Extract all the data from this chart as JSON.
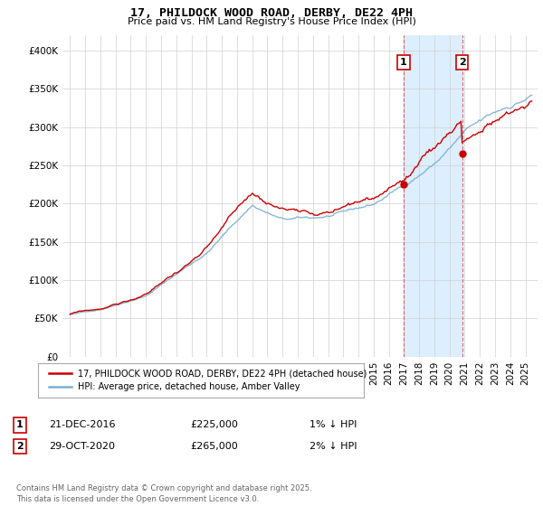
{
  "title": "17, PHILDOCK WOOD ROAD, DERBY, DE22 4PH",
  "subtitle": "Price paid vs. HM Land Registry's House Price Index (HPI)",
  "legend_line1": "17, PHILDOCK WOOD ROAD, DERBY, DE22 4PH (detached house)",
  "legend_line2": "HPI: Average price, detached house, Amber Valley",
  "annotation1_label": "1",
  "annotation1_date": "21-DEC-2016",
  "annotation1_price": 225000,
  "annotation1_pct": "1% ↓ HPI",
  "annotation2_label": "2",
  "annotation2_date": "29-OCT-2020",
  "annotation2_price": 265000,
  "annotation2_pct": "2% ↓ HPI",
  "marker1_x": 2016.97,
  "marker2_x": 2020.83,
  "line_color_red": "#cc0000",
  "line_color_blue": "#7bafd4",
  "annotation_color": "#cc0000",
  "vline_color": "#dd4444",
  "highlight_color": "#ddeeff",
  "footer": "Contains HM Land Registry data © Crown copyright and database right 2025.\nThis data is licensed under the Open Government Licence v3.0.",
  "ylim": [
    0,
    420000
  ],
  "xlim_start": 1994.5,
  "xlim_end": 2025.8,
  "sale1_year": 2016.97,
  "sale1_price": 225000,
  "sale2_year": 2020.83,
  "sale2_price": 265000
}
